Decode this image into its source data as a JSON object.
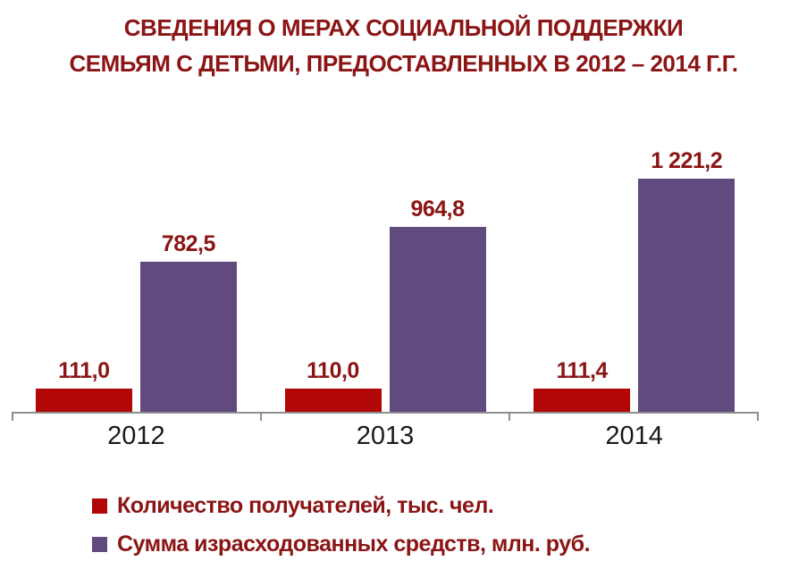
{
  "title": {
    "line1": "СВЕДЕНИЯ О МЕРАХ СОЦИАЛЬНОЙ ПОДДЕРЖКИ",
    "line2": "СЕМЬЯМ С ДЕТЬМИ, ПРЕДОСТАВЛЕННЫХ В 2012 – 2014 Г.Г."
  },
  "chart_data": {
    "type": "bar",
    "title": "СВЕДЕНИЯ О МЕРАХ СОЦИАЛЬНОЙ ПОДДЕРЖКИ СЕМЬЯМ С ДЕТЬМИ, ПРЕДОСТАВЛЕННЫХ В 2012 – 2014 Г.Г.",
    "categories": [
      "2012",
      "2013",
      "2014"
    ],
    "series": [
      {
        "name": "Количество получателей, тыс. чел.",
        "values": [
          111.0,
          110.0,
          111.4
        ],
        "value_labels": [
          "111,0",
          "110,0",
          "111,4"
        ],
        "color": "#b20707"
      },
      {
        "name": "Сумма израсходованных средств, млн. руб.",
        "values": [
          782.5,
          964.8,
          1221.2
        ],
        "value_labels": [
          "782,5",
          "964,8",
          "1 221,2"
        ],
        "color": "#614a7e"
      }
    ],
    "ylim": [
      0,
      1300
    ],
    "grid": false,
    "y_axis_visible": false,
    "legend_position": "bottom-left",
    "data_label_color": "#8b1414",
    "xtick_label_color": "#1a1a1a",
    "axis_color": "#8e8e8e",
    "title_color": "#8b1414",
    "background": "#ffffff"
  }
}
